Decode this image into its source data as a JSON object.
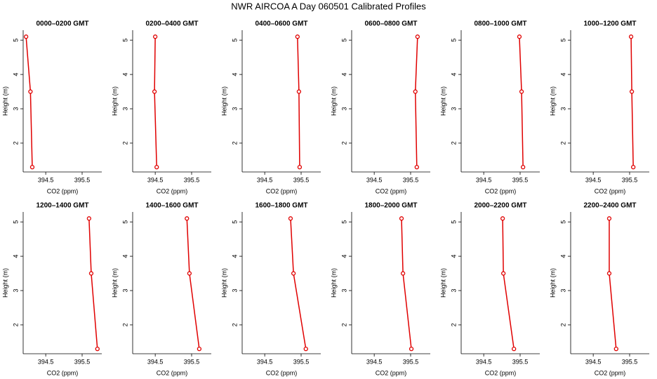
{
  "title": "NWR AIRCOA A  Day 060501  Calibrated Profiles",
  "chart_data": [
    {
      "type": "line",
      "title": "0000–0200 GMT",
      "x_label": "CO2 (ppm)",
      "y_label": "Height (m)",
      "color": "#e00000",
      "x": [
        393.96,
        394.08,
        394.13
      ],
      "y": [
        5.1,
        3.5,
        1.3
      ],
      "xlim": [
        393.88,
        396.04
      ],
      "ylim": [
        1.16,
        5.29
      ],
      "xticks": [
        394.5,
        395.5
      ],
      "yticks": [
        2,
        3,
        4,
        5
      ]
    },
    {
      "type": "line",
      "title": "0200–0400 GMT",
      "x_label": "CO2 (ppm)",
      "y_label": "Height (m)",
      "color": "#e00000",
      "x": [
        394.5,
        394.48,
        394.54
      ],
      "y": [
        5.1,
        3.5,
        1.3
      ],
      "xlim": [
        393.88,
        396.04
      ],
      "ylim": [
        1.16,
        5.29
      ],
      "xticks": [
        394.5,
        395.5
      ],
      "yticks": [
        2,
        3,
        4,
        5
      ]
    },
    {
      "type": "line",
      "title": "0400–0600 GMT",
      "x_label": "CO2 (ppm)",
      "y_label": "Height (m)",
      "color": "#e00000",
      "x": [
        395.4,
        395.44,
        395.46
      ],
      "y": [
        5.1,
        3.5,
        1.3
      ],
      "xlim": [
        393.88,
        396.04
      ],
      "ylim": [
        1.16,
        5.29
      ],
      "xticks": [
        394.5,
        395.5
      ],
      "yticks": [
        2,
        3,
        4,
        5
      ]
    },
    {
      "type": "line",
      "title": "0600–0800 GMT",
      "x_label": "CO2 (ppm)",
      "y_label": "Height (m)",
      "color": "#e00000",
      "x": [
        395.69,
        395.63,
        395.67
      ],
      "y": [
        5.1,
        3.5,
        1.3
      ],
      "xlim": [
        393.88,
        396.04
      ],
      "ylim": [
        1.16,
        5.29
      ],
      "xticks": [
        394.5,
        395.5
      ],
      "yticks": [
        2,
        3,
        4,
        5
      ]
    },
    {
      "type": "line",
      "title": "0800–1000 GMT",
      "x_label": "CO2 (ppm)",
      "y_label": "Height (m)",
      "color": "#e00000",
      "x": [
        395.48,
        395.54,
        395.58
      ],
      "y": [
        5.1,
        3.5,
        1.3
      ],
      "xlim": [
        393.88,
        396.04
      ],
      "ylim": [
        1.16,
        5.29
      ],
      "xticks": [
        394.5,
        395.5
      ],
      "yticks": [
        2,
        3,
        4,
        5
      ]
    },
    {
      "type": "line",
      "title": "1000–1200 GMT",
      "x_label": "CO2 (ppm)",
      "y_label": "Height (m)",
      "color": "#e00000",
      "x": [
        395.54,
        395.56,
        395.6
      ],
      "y": [
        5.1,
        3.5,
        1.3
      ],
      "xlim": [
        393.88,
        396.04
      ],
      "ylim": [
        1.16,
        5.29
      ],
      "xticks": [
        394.5,
        395.5
      ],
      "yticks": [
        2,
        3,
        4,
        5
      ]
    },
    {
      "type": "line",
      "title": "1200–1400 GMT",
      "x_label": "CO2 (ppm)",
      "y_label": "Height (m)",
      "color": "#e00000",
      "x": [
        395.69,
        395.75,
        395.92
      ],
      "y": [
        5.1,
        3.5,
        1.3
      ],
      "xlim": [
        393.88,
        396.04
      ],
      "ylim": [
        1.16,
        5.29
      ],
      "xticks": [
        394.5,
        395.5
      ],
      "yticks": [
        2,
        3,
        4,
        5
      ]
    },
    {
      "type": "line",
      "title": "1400–1600 GMT",
      "x_label": "CO2 (ppm)",
      "y_label": "Height (m)",
      "color": "#e00000",
      "x": [
        395.37,
        395.44,
        395.71
      ],
      "y": [
        5.1,
        3.5,
        1.3
      ],
      "xlim": [
        393.88,
        396.04
      ],
      "ylim": [
        1.16,
        5.29
      ],
      "xticks": [
        394.5,
        395.5
      ],
      "yticks": [
        2,
        3,
        4,
        5
      ]
    },
    {
      "type": "line",
      "title": "1600–1800 GMT",
      "x_label": "CO2 (ppm)",
      "y_label": "Height (m)",
      "color": "#e00000",
      "x": [
        395.21,
        395.29,
        395.63
      ],
      "y": [
        5.1,
        3.5,
        1.3
      ],
      "xlim": [
        393.88,
        396.04
      ],
      "ylim": [
        1.16,
        5.29
      ],
      "xticks": [
        394.5,
        395.5
      ],
      "yticks": [
        2,
        3,
        4,
        5
      ]
    },
    {
      "type": "line",
      "title": "1800–2000 GMT",
      "x_label": "CO2 (ppm)",
      "y_label": "Height (m)",
      "color": "#e00000",
      "x": [
        395.25,
        395.29,
        395.52
      ],
      "y": [
        5.1,
        3.5,
        1.3
      ],
      "xlim": [
        393.88,
        396.04
      ],
      "ylim": [
        1.16,
        5.29
      ],
      "xticks": [
        394.5,
        395.5
      ],
      "yticks": [
        2,
        3,
        4,
        5
      ]
    },
    {
      "type": "line",
      "title": "2000–2200 GMT",
      "x_label": "CO2 (ppm)",
      "y_label": "Height (m)",
      "color": "#e00000",
      "x": [
        395.02,
        395.04,
        395.33
      ],
      "y": [
        5.1,
        3.5,
        1.3
      ],
      "xlim": [
        393.88,
        396.04
      ],
      "ylim": [
        1.16,
        5.29
      ],
      "xticks": [
        394.5,
        395.5
      ],
      "yticks": [
        2,
        3,
        4,
        5
      ]
    },
    {
      "type": "line",
      "title": "2200–2400 GMT",
      "x_label": "CO2 (ppm)",
      "y_label": "Height (m)",
      "color": "#e00000",
      "x": [
        394.94,
        394.94,
        395.13
      ],
      "y": [
        5.1,
        3.5,
        1.3
      ],
      "xlim": [
        393.88,
        396.04
      ],
      "ylim": [
        1.16,
        5.29
      ],
      "xticks": [
        394.5,
        395.5
      ],
      "yticks": [
        2,
        3,
        4,
        5
      ]
    }
  ]
}
